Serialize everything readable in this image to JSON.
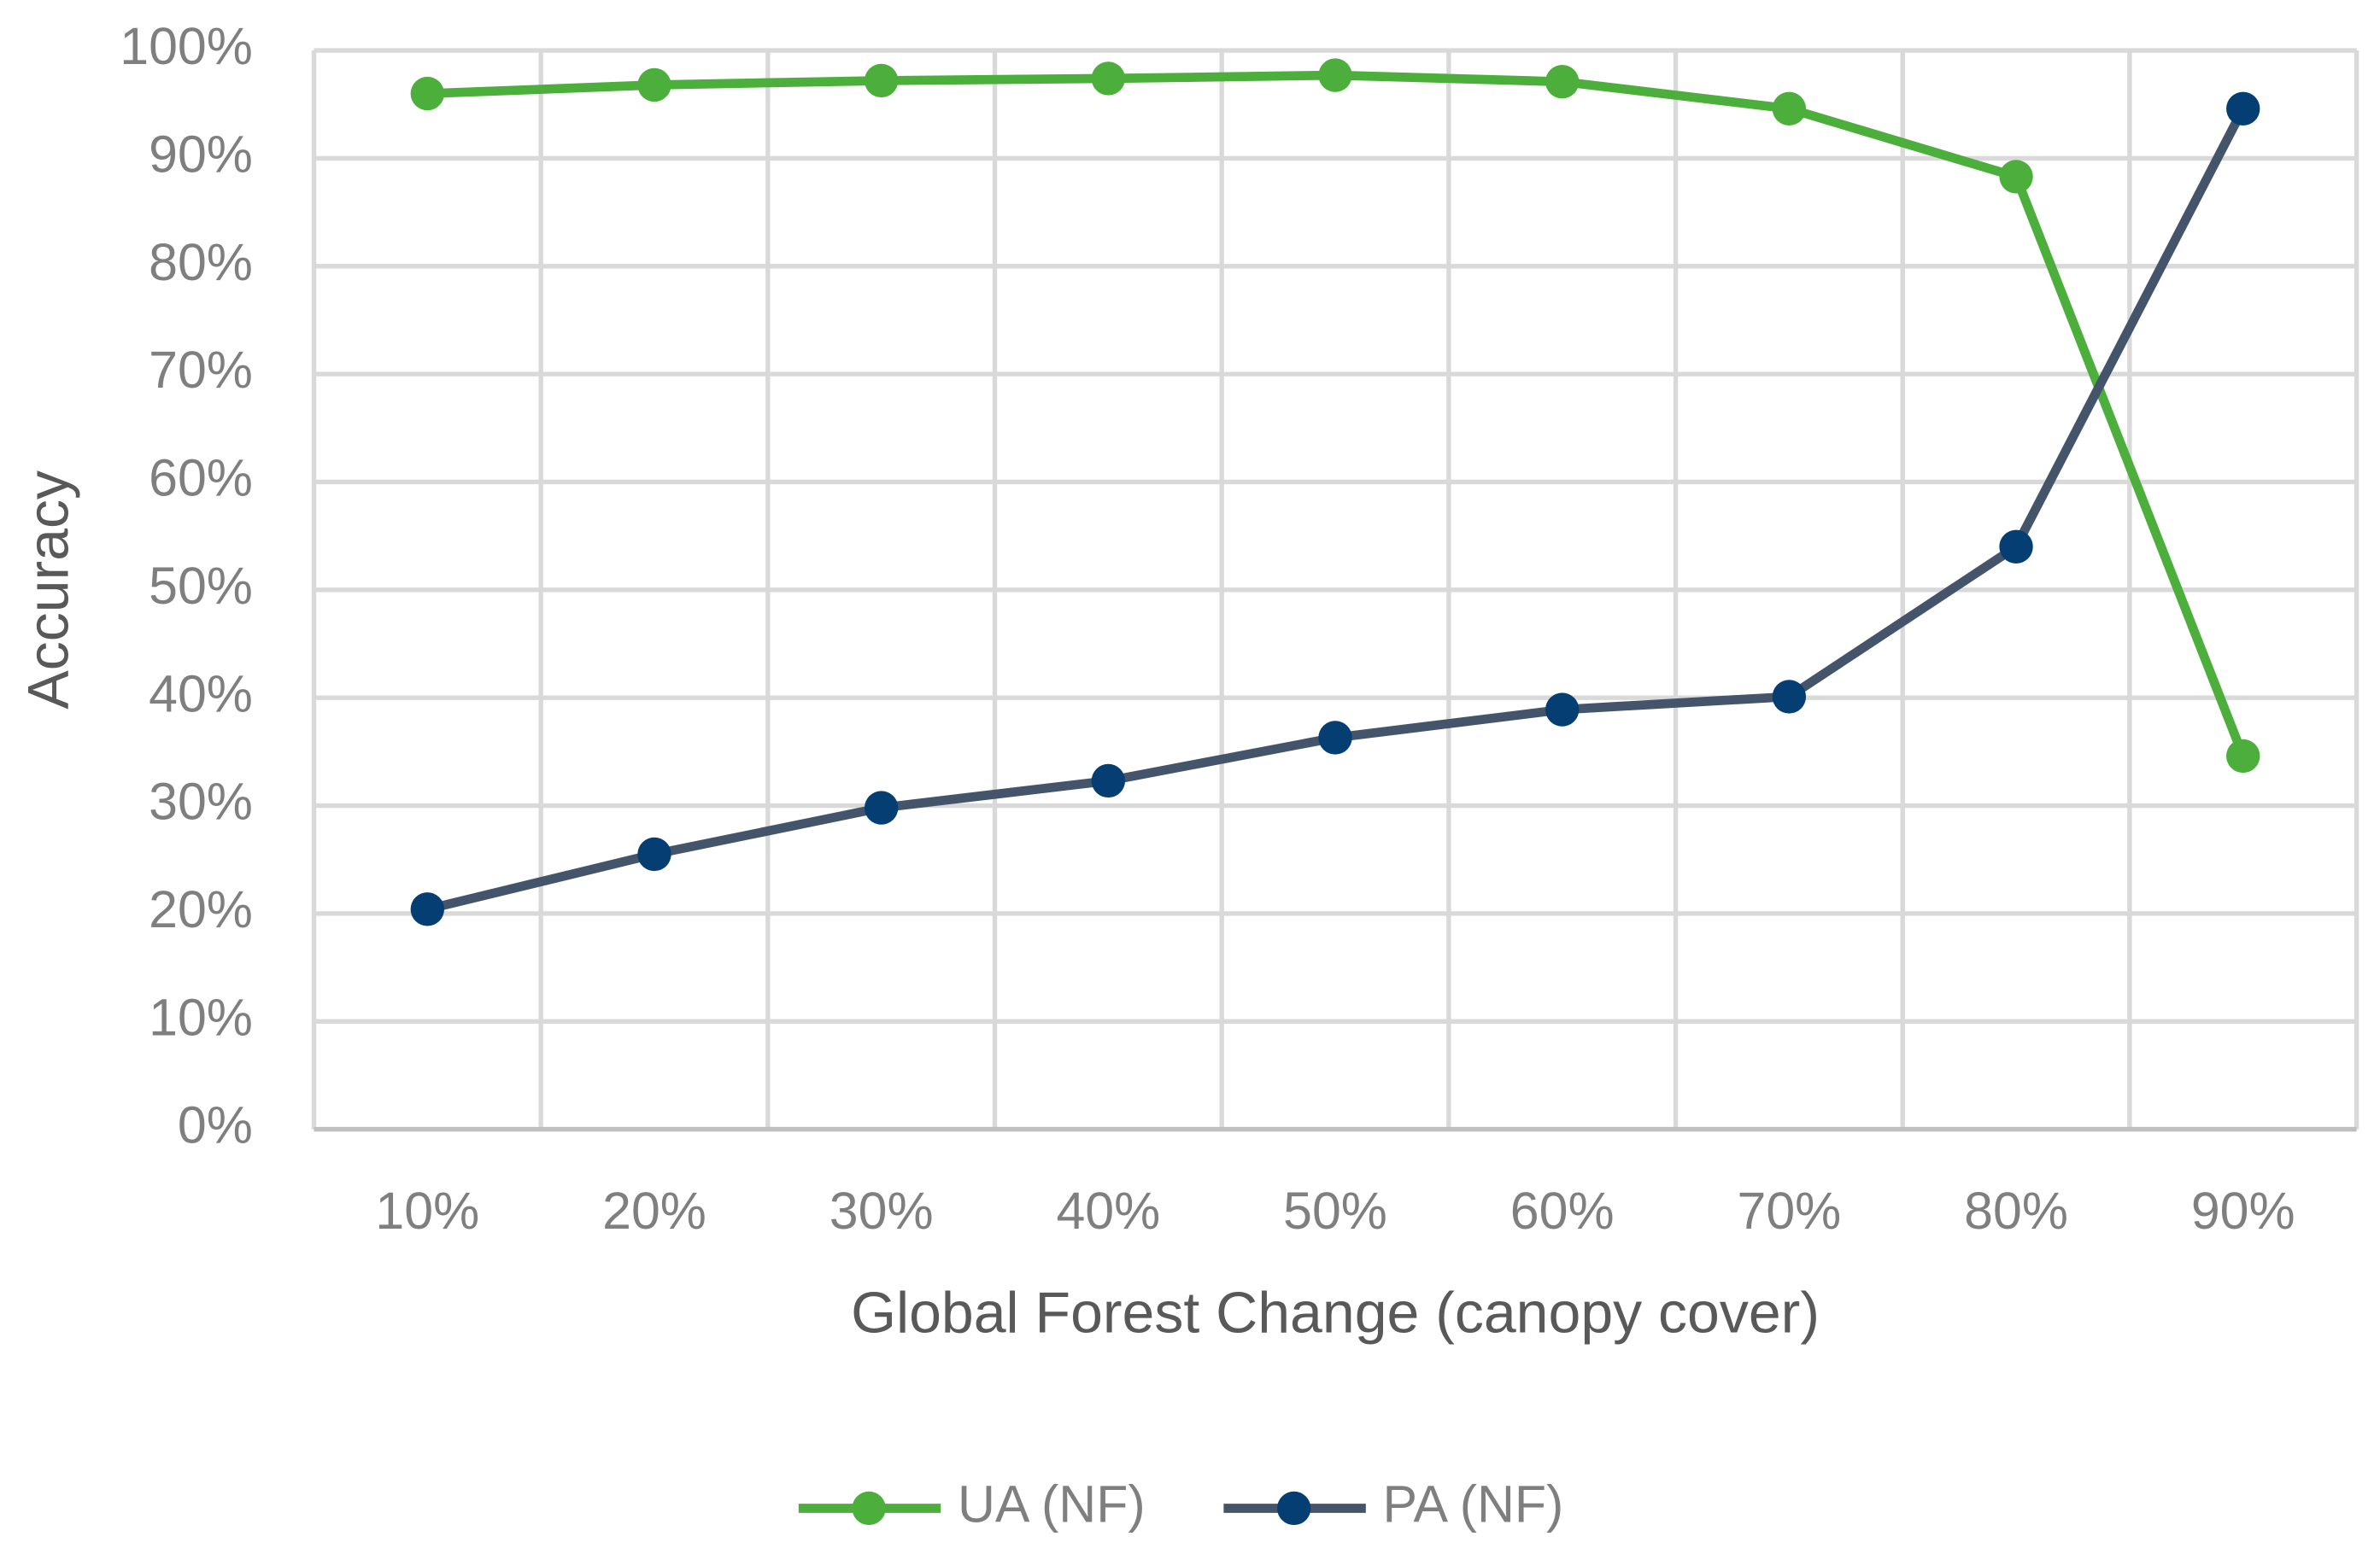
{
  "chart_data": {
    "type": "line",
    "x_label": "Global Forest Change (canopy cover)",
    "y_label": "Accuracy",
    "categories": [
      "10%",
      "20%",
      "30%",
      "40%",
      "50%",
      "60%",
      "70%",
      "80%",
      "90%"
    ],
    "series": [
      {
        "name": "UA (NF)",
        "color": "#4caf3c",
        "marker_color": "#4caf3c",
        "values": [
          96,
          96.8,
          97.2,
          97.4,
          97.7,
          97.1,
          94.6,
          88.3,
          34.6
        ]
      },
      {
        "name": "PA (NF)",
        "color": "#44546a",
        "marker_color": "#053e73",
        "values": [
          20.4,
          25.5,
          29.8,
          32.3,
          36.3,
          38.9,
          40.1,
          54,
          94.6
        ]
      }
    ],
    "ylim": [
      0,
      100
    ],
    "yticks": [
      {
        "value": 0,
        "label": "0%"
      },
      {
        "value": 10,
        "label": "10%"
      },
      {
        "value": 20,
        "label": "20%"
      },
      {
        "value": 30,
        "label": "30%"
      },
      {
        "value": 40,
        "label": "40%"
      },
      {
        "value": 50,
        "label": "50%"
      },
      {
        "value": 60,
        "label": "60%"
      },
      {
        "value": 70,
        "label": "70%"
      },
      {
        "value": 80,
        "label": "80%"
      },
      {
        "value": 90,
        "label": "90%"
      },
      {
        "value": 100,
        "label": "100%"
      }
    ],
    "grid": true,
    "legend": "bottom"
  }
}
